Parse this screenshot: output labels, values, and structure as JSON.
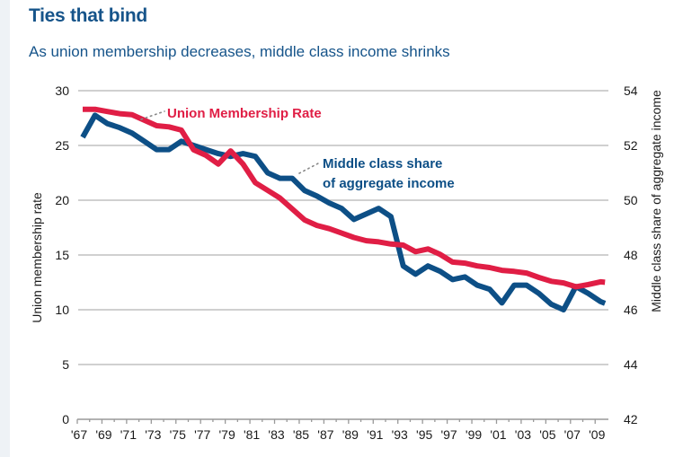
{
  "title": "Ties that bind",
  "subtitle": "As union membership decreases, middle class income shrinks",
  "colors": {
    "title": "#16548a",
    "union": "#e01e45",
    "middle_class": "#0d4f86",
    "grid": "#b5b5b5"
  },
  "chart_data": {
    "type": "line",
    "title": "Ties that bind",
    "subtitle": "As union membership decreases, middle class income shrinks",
    "xlabel": "",
    "ylabel": "Union membership rate",
    "y2label": "Middle class share of aggregate income",
    "ylim": [
      0,
      30
    ],
    "y2lim": [
      42,
      54
    ],
    "yticks": [
      0,
      5,
      10,
      15,
      20,
      25,
      30
    ],
    "y2ticks": [
      42,
      44,
      46,
      48,
      50,
      52,
      54
    ],
    "xrange": [
      1967,
      2010
    ],
    "xtick_labels": [
      "'67",
      "'69",
      "'71",
      "'73",
      "'75",
      "'77",
      "'79",
      "'81",
      "'83",
      "'85",
      "'87",
      "'89",
      "'91",
      "'93",
      "'95",
      "'97",
      "'99",
      "'01",
      "'03",
      "'05",
      "'07",
      "'09"
    ],
    "grid": true,
    "x": [
      1967,
      1968,
      1969,
      1970,
      1971,
      1972,
      1973,
      1974,
      1975,
      1976,
      1977,
      1978,
      1979,
      1980,
      1981,
      1982,
      1983,
      1984,
      1985,
      1986,
      1987,
      1988,
      1989,
      1990,
      1991,
      1992,
      1993,
      1994,
      1995,
      1996,
      1997,
      1998,
      1999,
      2000,
      2001,
      2002,
      2003,
      2004,
      2005,
      2006,
      2007,
      2008,
      2009
    ],
    "series": [
      {
        "name": "Union Membership Rate",
        "axis": "left",
        "color": "#e01e45",
        "values": [
          28.3,
          28.3,
          28.1,
          27.9,
          27.8,
          27.3,
          26.8,
          26.7,
          26.4,
          24.6,
          24.1,
          23.3,
          24.5,
          23.3,
          21.6,
          20.9,
          20.2,
          19.2,
          18.2,
          17.7,
          17.4,
          17.0,
          16.6,
          16.3,
          16.2,
          16.0,
          15.9,
          15.3,
          15.55,
          15.05,
          14.35,
          14.25,
          14.0,
          13.85,
          13.6,
          13.5,
          13.35,
          12.95,
          12.6,
          12.45,
          12.1,
          12.3,
          12.55
        ]
      },
      {
        "name": "Middle class share of aggregate income",
        "axis": "right",
        "color": "#0d4f86",
        "values": [
          52.3,
          53.1,
          52.8,
          52.65,
          52.45,
          52.15,
          51.85,
          51.85,
          52.15,
          52.0,
          51.85,
          51.7,
          51.6,
          51.7,
          51.6,
          51.0,
          50.8,
          50.8,
          50.35,
          50.15,
          49.9,
          49.7,
          49.3,
          49.5,
          49.7,
          49.4,
          47.6,
          47.3,
          47.6,
          47.4,
          47.1,
          47.2,
          46.9,
          46.75,
          46.25,
          46.9,
          46.9,
          46.6,
          46.2,
          46.0,
          46.85,
          46.6,
          46.3
        ]
      }
    ],
    "annotations": [
      {
        "text": "Union Membership Rate",
        "series": "Union Membership Rate",
        "anchor_year": 1972
      },
      {
        "text_lines": [
          "Middle class share",
          "of aggregate income"
        ],
        "series": "Middle class share of aggregate income",
        "anchor_year": 1985
      }
    ]
  }
}
